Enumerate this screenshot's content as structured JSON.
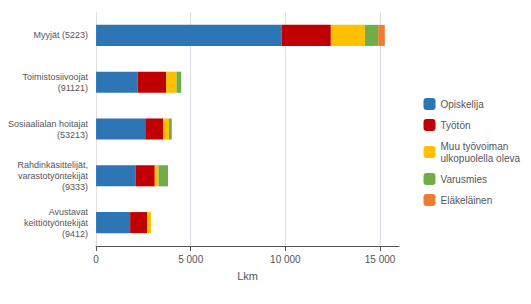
{
  "chart_data": {
    "type": "bar",
    "orientation": "horizontal",
    "stacked": true,
    "categories": [
      "Avustavat\nkeittiötyöntekijät\n(9412)",
      "Rahdinkäsittelijät,\nvarastotyöntekijät\n(9333)",
      "Sosiaalialan hoitajat\n(53213)",
      "Toimistosiivoojat\n(91121)",
      "Myyjät (5223)"
    ],
    "series": [
      {
        "name": "Opiskelija",
        "color": "#2E75B6",
        "values": [
          1800,
          2100,
          2600,
          2200,
          9800
        ]
      },
      {
        "name": "Työtön",
        "color": "#C00000",
        "values": [
          900,
          1000,
          950,
          1500,
          2600
        ]
      },
      {
        "name": "Muu työvoiman\nulkopuolella oleva",
        "color": "#FFC000",
        "values": [
          200,
          200,
          300,
          550,
          1800
        ]
      },
      {
        "name": "Varusmies",
        "color": "#70AD47",
        "values": [
          0,
          500,
          150,
          250,
          700
        ]
      },
      {
        "name": "Eläkeläinen",
        "color": "#ED7D31",
        "values": [
          0,
          0,
          0,
          0,
          350
        ]
      }
    ],
    "xlabel": "Lkm",
    "xlim": [
      0,
      16000
    ],
    "xticks": [
      0,
      {
        "value": 5000,
        "label": "5 000"
      },
      {
        "value": 10000,
        "label": "10 000"
      },
      {
        "value": 15000,
        "label": "15 000"
      }
    ],
    "grid": true,
    "legend": "right"
  }
}
